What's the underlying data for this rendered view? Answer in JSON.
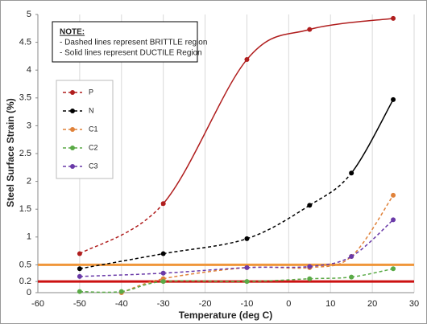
{
  "chart_data": {
    "type": "line",
    "x_label": "Temperature (deg C)",
    "y_label": "Steel Surface Strain (%)",
    "note": {
      "heading": "NOTE:",
      "lines": [
        "- Dashed lines represent BRITTLE region",
        "- Solid lines represent DUCTILE Region"
      ]
    },
    "xlim": [
      -60,
      30
    ],
    "xticks": [
      -60,
      -50,
      -40,
      -30,
      -20,
      -10,
      0,
      10,
      20,
      30
    ],
    "ylim": [
      0,
      5
    ],
    "yticks": [
      0,
      0.2,
      0.5,
      1,
      1.5,
      2,
      2.5,
      3,
      3.5,
      4,
      4.5,
      5
    ],
    "grid": "x",
    "hlines": [
      {
        "value": 0.5,
        "color": "#f0963a"
      },
      {
        "value": 0.2,
        "color": "#cc1111"
      }
    ],
    "series": [
      {
        "name": "P",
        "color": "#b01e1e",
        "x": [
          -50,
          -30,
          -10,
          5,
          25
        ],
        "values": [
          0.7,
          1.6,
          4.19,
          4.73,
          4.93
        ],
        "segment_styles": [
          "dashed",
          "solid",
          "solid",
          "solid"
        ]
      },
      {
        "name": "N",
        "color": "#000000",
        "x": [
          -50,
          -30,
          -10,
          5,
          15,
          25
        ],
        "values": [
          0.43,
          0.7,
          0.97,
          1.57,
          2.15,
          3.47
        ],
        "segment_styles": [
          "dashed",
          "dashed",
          "dashed",
          "dashed",
          "solid"
        ]
      },
      {
        "name": "C1",
        "color": "#e0823a",
        "x": [
          -40,
          -30,
          -10,
          5,
          15,
          25
        ],
        "values": [
          0,
          0.25,
          0.45,
          0.45,
          0.65,
          1.75
        ],
        "segment_styles": [
          "dashed",
          "dashed",
          "dashed",
          "dashed",
          "dashed"
        ]
      },
      {
        "name": "C2",
        "color": "#5aaa46",
        "x": [
          -50,
          -40,
          -30,
          -10,
          5,
          15,
          25
        ],
        "values": [
          0.02,
          0.02,
          0.2,
          0.2,
          0.25,
          0.28,
          0.43
        ],
        "segment_styles": [
          "dashed",
          "dashed",
          "dashed",
          "dashed",
          "dashed",
          "dashed"
        ]
      },
      {
        "name": "C3",
        "color": "#6a3aa8",
        "x": [
          -50,
          -30,
          -10,
          5,
          15,
          25
        ],
        "values": [
          0.29,
          0.35,
          0.45,
          0.47,
          0.65,
          1.31
        ],
        "segment_styles": [
          "dashed",
          "dashed",
          "dashed",
          "dashed",
          "dashed"
        ]
      }
    ]
  }
}
